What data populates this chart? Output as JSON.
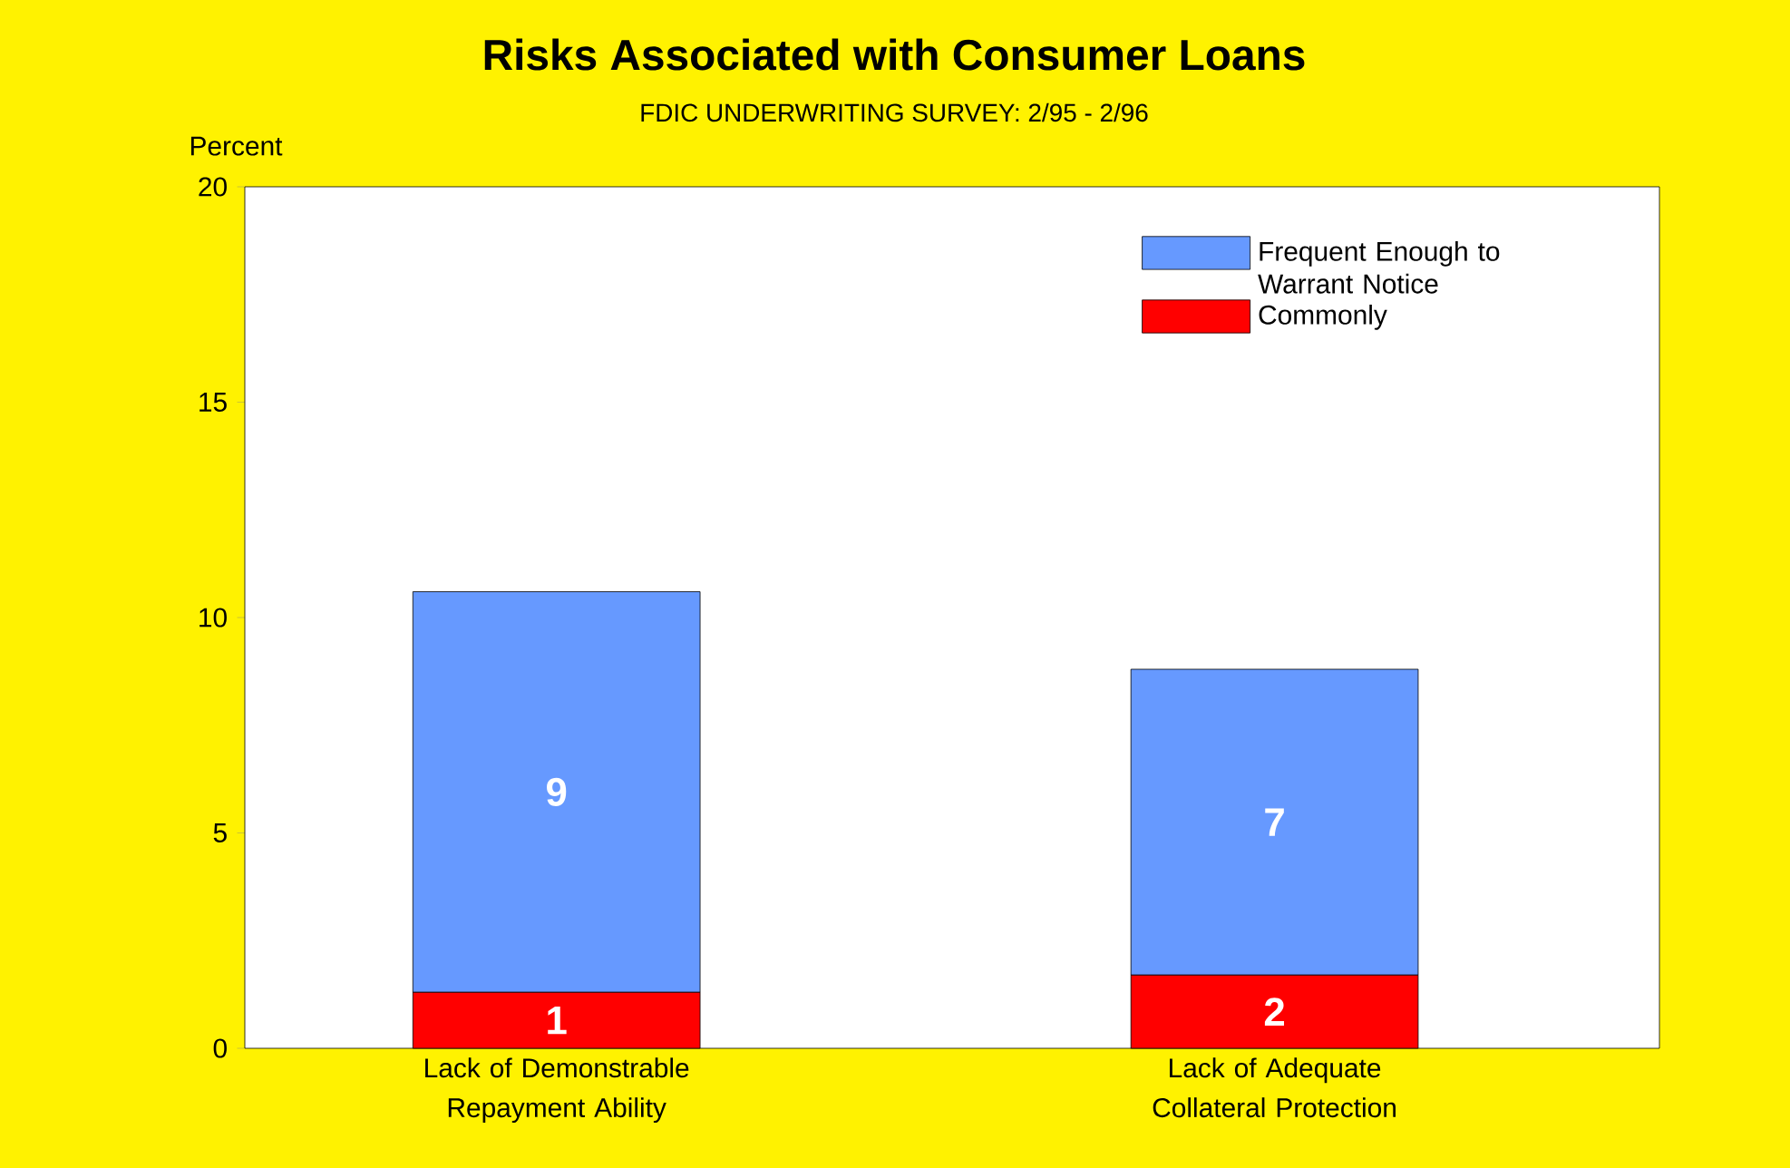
{
  "chart_data": {
    "type": "bar",
    "title": "Risks Associated with Consumer Loans",
    "subtitle": "FDIC UNDERWRITING SURVEY:  2/95 - 2/96",
    "ylabel": "Percent",
    "categories": [
      "Lack of Demonstrable Repayment Ability",
      "Lack of Adequate Collateral Protection"
    ],
    "stacked": true,
    "series": [
      {
        "name": "Commonly",
        "color": "#ff0000",
        "values": [
          1.3,
          1.7
        ],
        "value_labels": [
          "1",
          "2"
        ]
      },
      {
        "name": "Frequent Enough to Warrant Notice",
        "color": "#6699ff",
        "values": [
          9.3,
          7.1
        ],
        "value_labels": [
          "9",
          "7"
        ]
      }
    ],
    "ylim": [
      0,
      20
    ],
    "yticks": [
      0,
      5,
      10,
      15,
      20
    ],
    "grid": false,
    "legend": "top right"
  }
}
